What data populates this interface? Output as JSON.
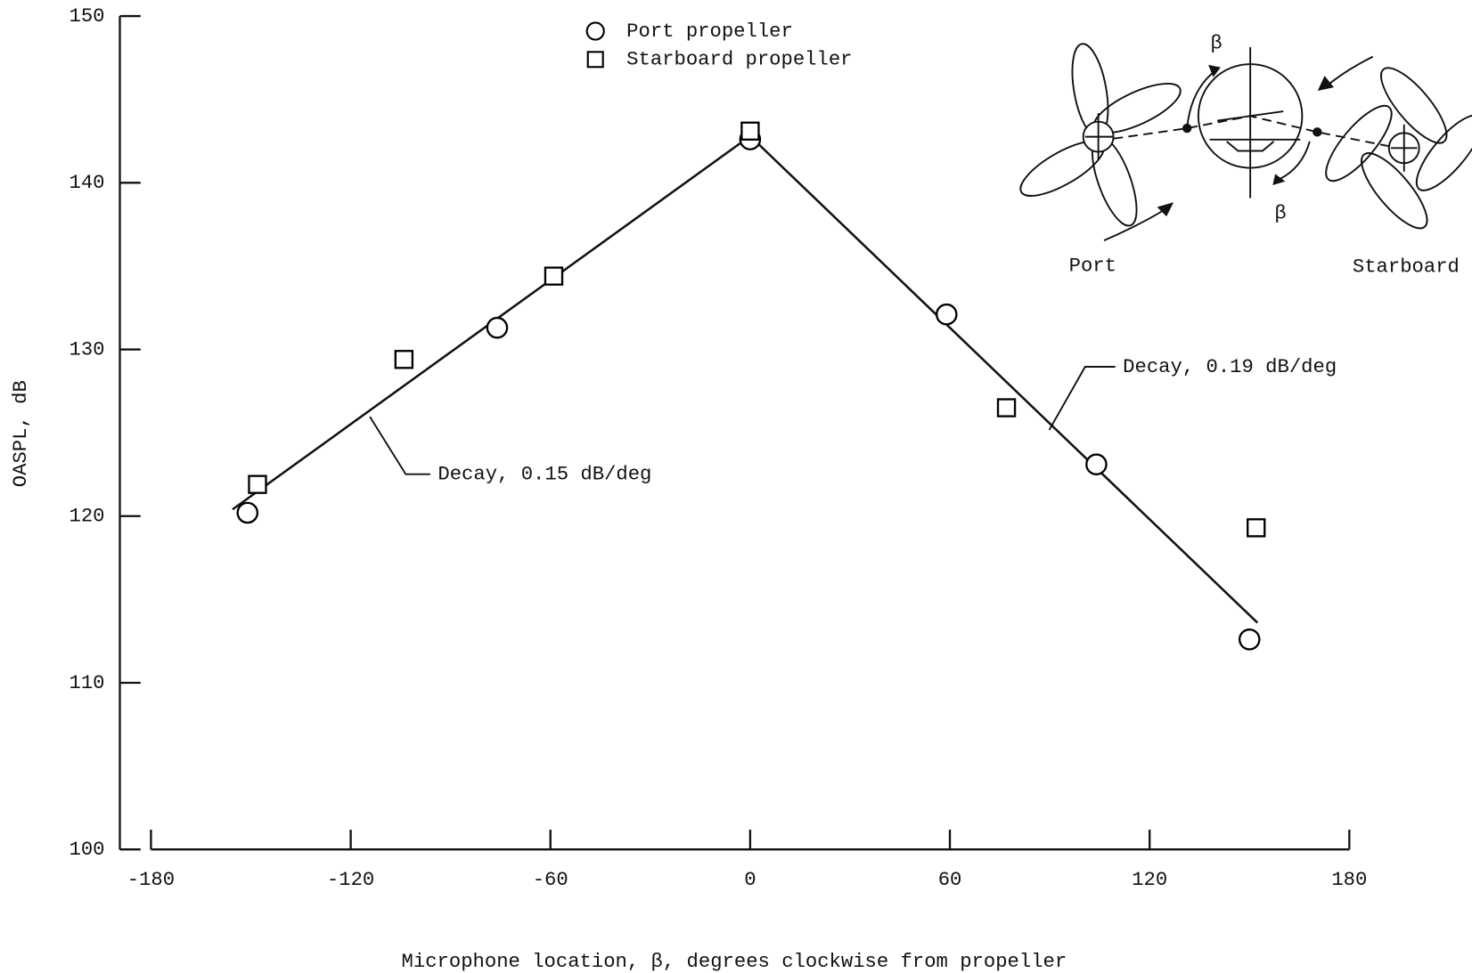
{
  "chart_data": {
    "type": "scatter",
    "xlabel": "Microphone location, β, degrees clockwise from propeller",
    "ylabel": "OASPL, dB",
    "xlim": [
      -180,
      180
    ],
    "ylim": [
      100,
      150
    ],
    "xticks": [
      -180,
      -120,
      -60,
      0,
      60,
      120,
      180
    ],
    "yticks": [
      100,
      110,
      120,
      130,
      140,
      150
    ],
    "series": [
      {
        "name": "Port propeller",
        "marker": "circle",
        "color": "#000000",
        "x": [
          -151,
          -76,
          0,
          59,
          104,
          150
        ],
        "values": [
          120.2,
          131.3,
          142.6,
          132.1,
          123.1,
          112.6
        ]
      },
      {
        "name": "Starboard propeller",
        "marker": "square",
        "color": "#000000",
        "x": [
          -148,
          -104,
          -59,
          0,
          77,
          152
        ],
        "values": [
          121.9,
          129.4,
          134.4,
          143.1,
          126.5,
          119.3
        ]
      }
    ],
    "fits": [
      {
        "label": "Decay, 0.15 dB/deg",
        "x": [
          -155.5,
          0
        ],
        "values": [
          120.4,
          142.8
        ]
      },
      {
        "label": "Decay, 0.19 dB/deg",
        "x": [
          0,
          152.4
        ],
        "values": [
          142.8,
          113.6
        ]
      }
    ],
    "inset": {
      "angle_labels": [
        "β",
        "β"
      ],
      "port": "Port",
      "starboard": "Starboard"
    }
  }
}
